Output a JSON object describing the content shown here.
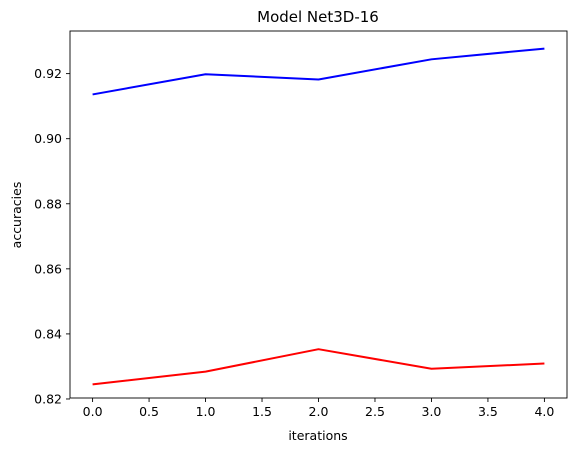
{
  "chart_data": {
    "type": "line",
    "title": "Model Net3D-16",
    "xlabel": "iterations",
    "ylabel": "accuracies",
    "xlim": [
      -0.2,
      4.2
    ],
    "ylim": [
      0.8203,
      0.9331
    ],
    "xticks": [
      0.0,
      0.5,
      1.0,
      1.5,
      2.0,
      2.5,
      3.0,
      3.5,
      4.0
    ],
    "xtick_labels": [
      "0.0",
      "0.5",
      "1.0",
      "1.5",
      "2.0",
      "2.5",
      "3.0",
      "3.5",
      "4.0"
    ],
    "yticks": [
      0.82,
      0.84,
      0.86,
      0.88,
      0.9,
      0.92
    ],
    "ytick_labels": [
      "0.82",
      "0.84",
      "0.86",
      "0.88",
      "0.90",
      "0.92"
    ],
    "grid": false,
    "legend": "none",
    "series": [
      {
        "color": "#0000ff",
        "x": [
          0,
          1,
          2,
          3,
          4
        ],
        "y": [
          0.9136,
          0.9198,
          0.9182,
          0.9244,
          0.9277
        ]
      },
      {
        "color": "#ff0000",
        "x": [
          0,
          1,
          2,
          3,
          4
        ],
        "y": [
          0.8245,
          0.8284,
          0.8353,
          0.8293,
          0.8309
        ]
      }
    ]
  }
}
